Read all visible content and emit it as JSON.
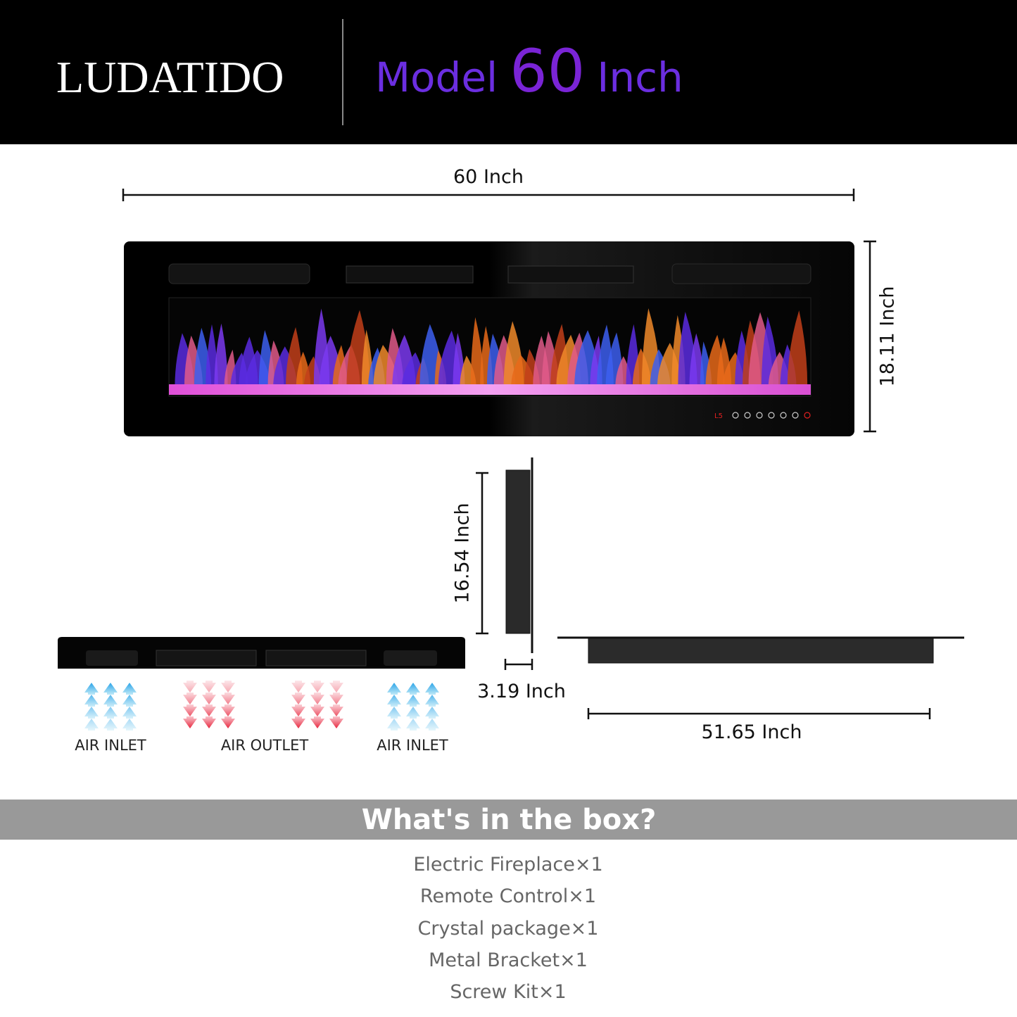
{
  "header": {
    "brand": "LUDATIDO",
    "model_prefix": "Model",
    "model_size": "60",
    "model_unit": "Inch"
  },
  "dimensions": {
    "width": "60 Inch",
    "height": "18.11 Inch",
    "side_height": "16.54 Inch",
    "depth": "3.19 Inch",
    "bracket_width": "51.65 Inch"
  },
  "airflow": {
    "labels": [
      "AIR INLET",
      "AIR OUTLET",
      "AIR INLET"
    ]
  },
  "box": {
    "title": "What's in the box?",
    "items": [
      "Electric Fireplace×1",
      "Remote Control×1",
      "Crystal package×1",
      "Metal Bracket×1",
      "Screw Kit×1"
    ]
  }
}
